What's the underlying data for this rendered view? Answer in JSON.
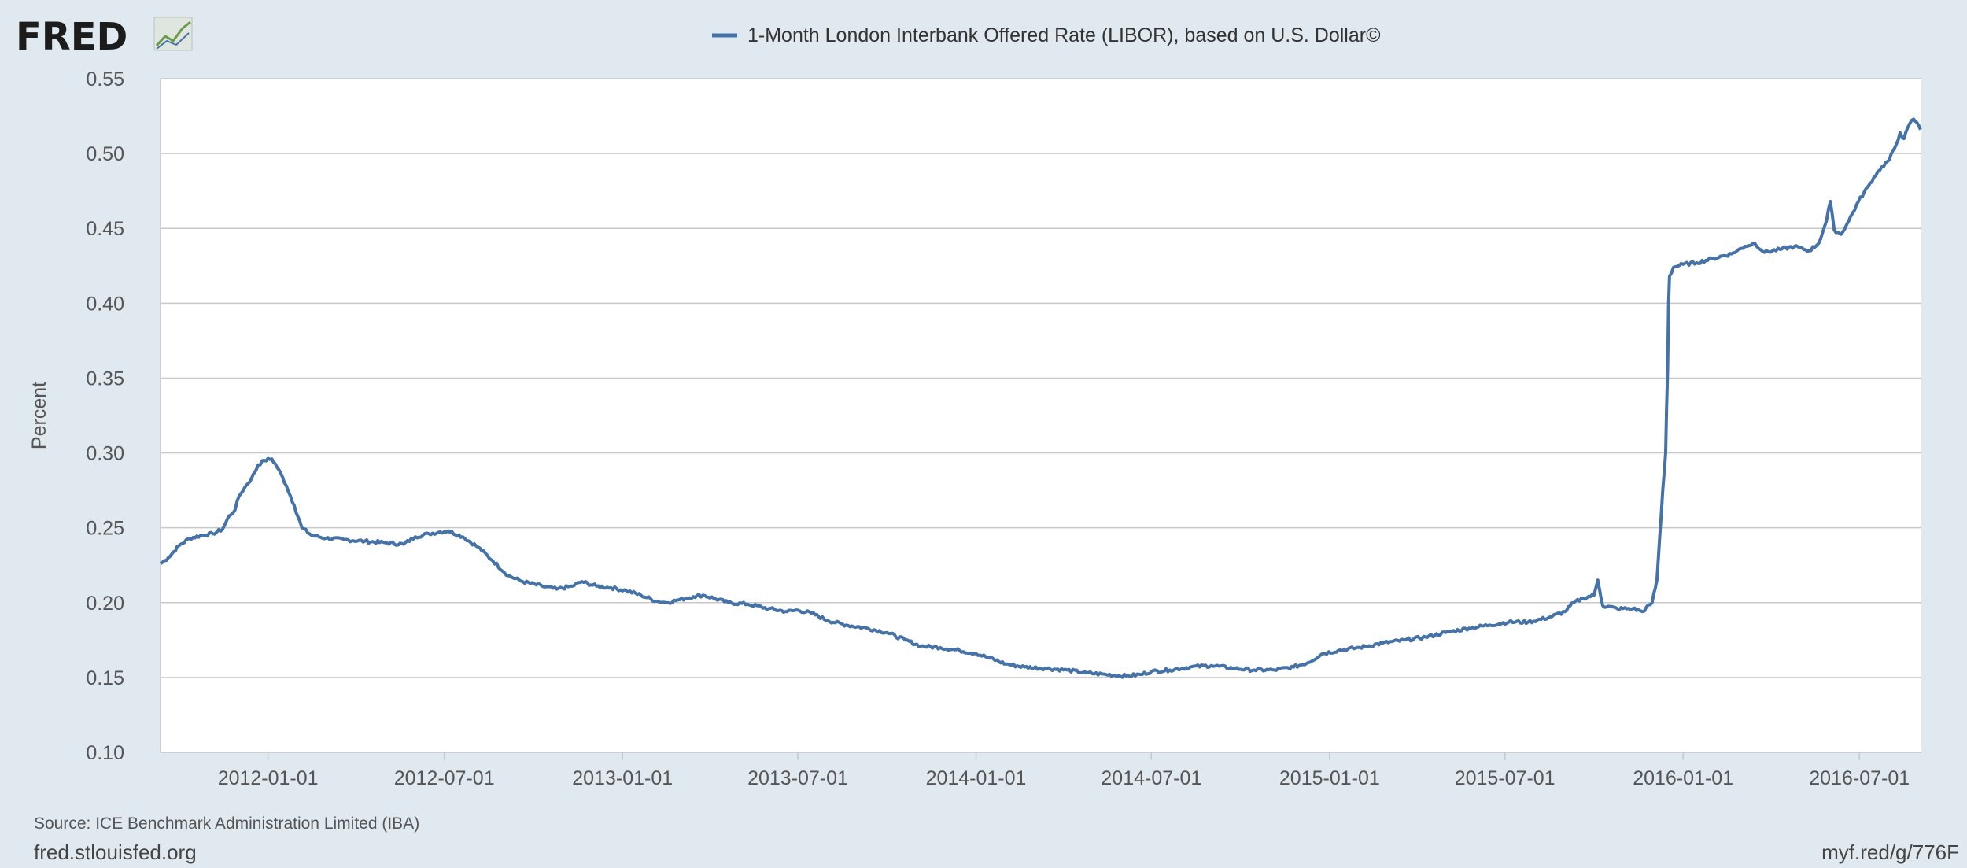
{
  "branding": {
    "logo_text": "FRED",
    "logo_icon": "chart-line-icon"
  },
  "footer": {
    "source": "Source: ICE Benchmark Administration Limited (IBA)",
    "site": "fred.stlouisfed.org",
    "short_link": "myf.red/g/776F"
  },
  "colors": {
    "background": "#e1e9f0",
    "plot_bg": "#ffffff",
    "line": "#4572a7",
    "grid": "#c8c8c8"
  },
  "chart_data": {
    "type": "line",
    "title": "",
    "xlabel": "",
    "ylabel": "Percent",
    "series": [
      {
        "name": "1-Month London Interbank Offered Rate (LIBOR), based on U.S. Dollar©",
        "points": [
          [
            "2011-09-12",
            0.226
          ],
          [
            "2011-09-20",
            0.23
          ],
          [
            "2011-10-01",
            0.238
          ],
          [
            "2011-10-12",
            0.243
          ],
          [
            "2011-10-25",
            0.245
          ],
          [
            "2011-11-05",
            0.246
          ],
          [
            "2011-11-15",
            0.249
          ],
          [
            "2011-11-22",
            0.258
          ],
          [
            "2011-11-28",
            0.262
          ],
          [
            "2011-12-02",
            0.271
          ],
          [
            "2011-12-08",
            0.277
          ],
          [
            "2011-12-15",
            0.283
          ],
          [
            "2011-12-22",
            0.292
          ],
          [
            "2011-12-28",
            0.295
          ],
          [
            "2012-01-05",
            0.296
          ],
          [
            "2012-01-12",
            0.289
          ],
          [
            "2012-01-20",
            0.278
          ],
          [
            "2012-01-28",
            0.265
          ],
          [
            "2012-02-05",
            0.25
          ],
          [
            "2012-02-15",
            0.245
          ],
          [
            "2012-03-01",
            0.243
          ],
          [
            "2012-03-20",
            0.242
          ],
          [
            "2012-04-10",
            0.241
          ],
          [
            "2012-05-01",
            0.24
          ],
          [
            "2012-05-20",
            0.239
          ],
          [
            "2012-06-01",
            0.244
          ],
          [
            "2012-06-15",
            0.246
          ],
          [
            "2012-06-25",
            0.247
          ],
          [
            "2012-07-05",
            0.248
          ],
          [
            "2012-07-20",
            0.244
          ],
          [
            "2012-08-05",
            0.237
          ],
          [
            "2012-08-20",
            0.228
          ],
          [
            "2012-09-05",
            0.218
          ],
          [
            "2012-09-20",
            0.214
          ],
          [
            "2012-10-10",
            0.211
          ],
          [
            "2012-10-25",
            0.209
          ],
          [
            "2012-11-10",
            0.211
          ],
          [
            "2012-11-20",
            0.214
          ],
          [
            "2012-12-05",
            0.211
          ],
          [
            "2012-12-20",
            0.21
          ],
          [
            "2013-01-05",
            0.208
          ],
          [
            "2013-01-20",
            0.205
          ],
          [
            "2013-02-05",
            0.201
          ],
          [
            "2013-02-15",
            0.2
          ],
          [
            "2013-03-01",
            0.202
          ],
          [
            "2013-03-15",
            0.204
          ],
          [
            "2013-03-25",
            0.205
          ],
          [
            "2013-04-05",
            0.203
          ],
          [
            "2013-04-20",
            0.2
          ],
          [
            "2013-05-10",
            0.199
          ],
          [
            "2013-06-01",
            0.196
          ],
          [
            "2013-06-20",
            0.194
          ],
          [
            "2013-07-01",
            0.195
          ],
          [
            "2013-07-15",
            0.193
          ],
          [
            "2013-08-01",
            0.188
          ],
          [
            "2013-08-20",
            0.185
          ],
          [
            "2013-09-10",
            0.183
          ],
          [
            "2013-10-01",
            0.18
          ],
          [
            "2013-10-20",
            0.175
          ],
          [
            "2013-11-05",
            0.171
          ],
          [
            "2013-11-25",
            0.17
          ],
          [
            "2013-12-15",
            0.168
          ],
          [
            "2014-01-01",
            0.166
          ],
          [
            "2014-01-15",
            0.163
          ],
          [
            "2014-02-01",
            0.159
          ],
          [
            "2014-02-20",
            0.157
          ],
          [
            "2014-03-15",
            0.156
          ],
          [
            "2014-04-05",
            0.155
          ],
          [
            "2014-04-25",
            0.153
          ],
          [
            "2014-05-15",
            0.152
          ],
          [
            "2014-06-05",
            0.151
          ],
          [
            "2014-06-20",
            0.152
          ],
          [
            "2014-07-01",
            0.154
          ],
          [
            "2014-07-20",
            0.155
          ],
          [
            "2014-08-10",
            0.157
          ],
          [
            "2014-09-01",
            0.158
          ],
          [
            "2014-09-25",
            0.156
          ],
          [
            "2014-10-15",
            0.155
          ],
          [
            "2014-11-05",
            0.155
          ],
          [
            "2014-11-25",
            0.157
          ],
          [
            "2014-12-10",
            0.16
          ],
          [
            "2014-12-25",
            0.166
          ],
          [
            "2015-01-10",
            0.168
          ],
          [
            "2015-02-01",
            0.17
          ],
          [
            "2015-02-25",
            0.173
          ],
          [
            "2015-03-20",
            0.175
          ],
          [
            "2015-04-10",
            0.177
          ],
          [
            "2015-05-01",
            0.18
          ],
          [
            "2015-05-25",
            0.183
          ],
          [
            "2015-06-15",
            0.185
          ],
          [
            "2015-07-05",
            0.187
          ],
          [
            "2015-07-25",
            0.187
          ],
          [
            "2015-08-15",
            0.19
          ],
          [
            "2015-09-01",
            0.194
          ],
          [
            "2015-09-10",
            0.2
          ],
          [
            "2015-09-20",
            0.203
          ],
          [
            "2015-10-01",
            0.205
          ],
          [
            "2015-10-05",
            0.215
          ],
          [
            "2015-10-10",
            0.198
          ],
          [
            "2015-10-25",
            0.196
          ],
          [
            "2015-11-10",
            0.196
          ],
          [
            "2015-11-20",
            0.194
          ],
          [
            "2015-11-30",
            0.2
          ],
          [
            "2015-12-05",
            0.215
          ],
          [
            "2015-12-08",
            0.245
          ],
          [
            "2015-12-11",
            0.275
          ],
          [
            "2015-12-14",
            0.3
          ],
          [
            "2015-12-15",
            0.33
          ],
          [
            "2015-12-16",
            0.355
          ],
          [
            "2015-12-17",
            0.4
          ],
          [
            "2015-12-18",
            0.418
          ],
          [
            "2015-12-22",
            0.424
          ],
          [
            "2016-01-01",
            0.426
          ],
          [
            "2016-01-15",
            0.427
          ],
          [
            "2016-02-01",
            0.43
          ],
          [
            "2016-02-20",
            0.433
          ],
          [
            "2016-03-05",
            0.438
          ],
          [
            "2016-03-15",
            0.44
          ],
          [
            "2016-03-25",
            0.434
          ],
          [
            "2016-04-10",
            0.436
          ],
          [
            "2016-04-25",
            0.438
          ],
          [
            "2016-05-10",
            0.435
          ],
          [
            "2016-05-20",
            0.44
          ],
          [
            "2016-05-28",
            0.455
          ],
          [
            "2016-06-01",
            0.468
          ],
          [
            "2016-06-05",
            0.449
          ],
          [
            "2016-06-12",
            0.446
          ],
          [
            "2016-06-20",
            0.455
          ],
          [
            "2016-06-30",
            0.468
          ],
          [
            "2016-07-10",
            0.478
          ],
          [
            "2016-07-20",
            0.488
          ],
          [
            "2016-08-01",
            0.496
          ],
          [
            "2016-08-08",
            0.506
          ],
          [
            "2016-08-12",
            0.514
          ],
          [
            "2016-08-16",
            0.51
          ],
          [
            "2016-08-22",
            0.52
          ],
          [
            "2016-08-26",
            0.523
          ],
          [
            "2016-08-29",
            0.521
          ],
          [
            "2016-09-02",
            0.516
          ]
        ]
      }
    ],
    "x_ticks": [
      "2012-01-01",
      "2012-07-01",
      "2013-01-01",
      "2013-07-01",
      "2014-01-01",
      "2014-07-01",
      "2015-01-01",
      "2015-07-01",
      "2016-01-01",
      "2016-07-01"
    ],
    "y_ticks": [
      "0.10",
      "0.15",
      "0.20",
      "0.25",
      "0.30",
      "0.35",
      "0.40",
      "0.45",
      "0.50",
      "0.55"
    ],
    "xlim": [
      "2011-09-12",
      "2016-09-03"
    ],
    "ylim": [
      0.1,
      0.55
    ],
    "grid": "horizontal",
    "legend_position": "top-center"
  }
}
